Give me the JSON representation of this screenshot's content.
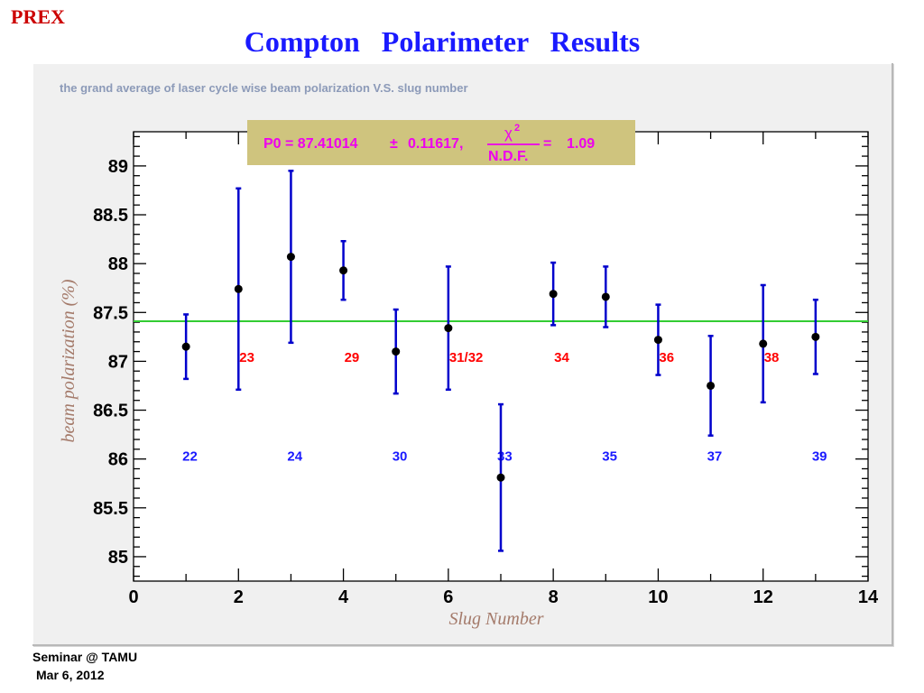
{
  "slide": {
    "corner_tag": "PREX",
    "title": "Compton   Polarimeter   Results",
    "footer_line1": "Seminar @ TAMU",
    "footer_line2": "Mar 6, 2012"
  },
  "colors": {
    "title": "#1a1aff",
    "corner_tag": "#cc0000",
    "error_bars": "#0000cc",
    "fit_line": "#33cc33",
    "red_labels": "#ff0000",
    "blue_labels": "#1a1aff",
    "axis_titles": "#a47a6a",
    "fit_box_bg": "#cfc47e",
    "fit_text": "#ee00ee"
  },
  "chart_data": {
    "type": "scatter",
    "canvas_caption": "the grand average of laser cycle wise beam polarization V.S. slug number",
    "xlabel": "Slug Number",
    "ylabel": "beam polarization (%)",
    "xlim": [
      0,
      14
    ],
    "ylim": [
      84.75,
      89.35
    ],
    "x_ticks": [
      0,
      2,
      4,
      6,
      8,
      10,
      12,
      14
    ],
    "y_ticks": [
      85,
      85.5,
      86,
      86.5,
      87,
      87.5,
      88,
      88.5,
      89
    ],
    "points": [
      {
        "x": 1,
        "y": 87.15,
        "err": 0.33
      },
      {
        "x": 2,
        "y": 87.74,
        "err": 1.03
      },
      {
        "x": 3,
        "y": 88.07,
        "err": 0.88
      },
      {
        "x": 4,
        "y": 87.93,
        "err": 0.3
      },
      {
        "x": 5,
        "y": 87.1,
        "err": 0.43
      },
      {
        "x": 6,
        "y": 87.34,
        "err": 0.63
      },
      {
        "x": 7,
        "y": 85.81,
        "err": 0.75
      },
      {
        "x": 8,
        "y": 87.69,
        "err": 0.32
      },
      {
        "x": 9,
        "y": 87.66,
        "err": 0.31
      },
      {
        "x": 10,
        "y": 87.22,
        "err": 0.36
      },
      {
        "x": 11,
        "y": 86.75,
        "err": 0.51
      },
      {
        "x": 12,
        "y": 87.18,
        "err": 0.6
      },
      {
        "x": 13,
        "y": 87.25,
        "err": 0.38
      }
    ],
    "fit": {
      "value": 87.41014,
      "label_prefix": "P0 = 87.41014",
      "pm": "±",
      "label_error": "0.11617,",
      "chi_symbol": "χ",
      "chi_exp": "2",
      "ndf": "N.D.F.",
      "eq": "=",
      "chi2_value": "1.09"
    },
    "annotations": [
      {
        "text": "22",
        "x": 1.0,
        "y": 86.04,
        "color": "blue"
      },
      {
        "text": "23",
        "x": 2.0,
        "y": 87.05,
        "color": "red"
      },
      {
        "text": "24",
        "x": 3.0,
        "y": 86.04,
        "color": "blue"
      },
      {
        "text": "29",
        "x": 4.0,
        "y": 87.05,
        "color": "red"
      },
      {
        "text": "30",
        "x": 5.0,
        "y": 86.04,
        "color": "blue"
      },
      {
        "text": "31/32",
        "x": 6.0,
        "y": 87.05,
        "color": "red"
      },
      {
        "text": "33",
        "x": 7.0,
        "y": 86.04,
        "color": "blue"
      },
      {
        "text": "34",
        "x": 8.0,
        "y": 87.05,
        "color": "red"
      },
      {
        "text": "35",
        "x": 9.0,
        "y": 86.04,
        "color": "blue"
      },
      {
        "text": "36",
        "x": 10.0,
        "y": 87.05,
        "color": "red"
      },
      {
        "text": "37",
        "x": 11.0,
        "y": 86.04,
        "color": "blue"
      },
      {
        "text": "38",
        "x": 12.0,
        "y": 87.05,
        "color": "red"
      },
      {
        "text": "39",
        "x": 13.0,
        "y": 86.04,
        "color": "blue"
      }
    ]
  }
}
